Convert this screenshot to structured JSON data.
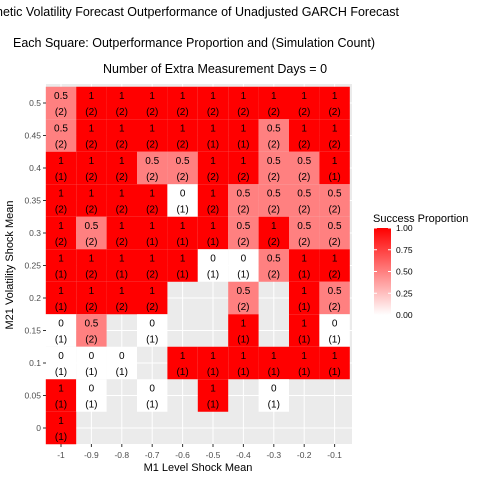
{
  "chart_data": {
    "type": "heatmap",
    "title": "hetic Volatility Forecast Outperformance of Unadjusted GARCH Forecast",
    "subtitle": "Each Square: Outperformance Proportion and (Simulation Count)",
    "subtitle2": "Number of Extra Measurement Days = 0",
    "xlabel": "M1 Level Shock Mean",
    "ylabel": "M21 Volatility Shock Mean",
    "x_ticks": [
      "-1",
      "-0.9",
      "-0.8",
      "-0.7",
      "-0.6",
      "-0.5",
      "-0.4",
      "-0.3",
      "-0.2",
      "-0.1"
    ],
    "y_ticks": [
      "0",
      "0.05",
      "0.1",
      "0.15",
      "0.2",
      "0.25",
      "0.3",
      "0.35",
      "0.4",
      "0.45",
      "0.5"
    ],
    "x_values": [
      -1,
      -0.9,
      -0.8,
      -0.7,
      -0.6,
      -0.5,
      -0.4,
      -0.3,
      -0.2,
      -0.1
    ],
    "y_values": [
      0,
      0.05,
      0.1,
      0.15,
      0.2,
      0.25,
      0.3,
      0.35,
      0.4,
      0.45,
      0.5
    ],
    "grid": true,
    "legend": {
      "title": "Success Proportion",
      "labels": [
        "1.00",
        "0.75",
        "0.50",
        "0.25",
        "0.00"
      ],
      "low_color": "#ffffff",
      "high_color": "#ff0000",
      "placement": "right"
    },
    "panel_background": "#ebebeb",
    "cells": [
      {
        "x": -1,
        "y": 0.5,
        "value": 0.5,
        "count": 2
      },
      {
        "x": -0.9,
        "y": 0.5,
        "value": 1,
        "count": 2
      },
      {
        "x": -0.8,
        "y": 0.5,
        "value": 1,
        "count": 2
      },
      {
        "x": -0.7,
        "y": 0.5,
        "value": 1,
        "count": 2
      },
      {
        "x": -0.6,
        "y": 0.5,
        "value": 1,
        "count": 2
      },
      {
        "x": -0.5,
        "y": 0.5,
        "value": 1,
        "count": 2
      },
      {
        "x": -0.4,
        "y": 0.5,
        "value": 1,
        "count": 2
      },
      {
        "x": -0.3,
        "y": 0.5,
        "value": 1,
        "count": 2
      },
      {
        "x": -0.2,
        "y": 0.5,
        "value": 1,
        "count": 2
      },
      {
        "x": -0.1,
        "y": 0.5,
        "value": 1,
        "count": 2
      },
      {
        "x": -1,
        "y": 0.45,
        "value": 0.5,
        "count": 2
      },
      {
        "x": -0.9,
        "y": 0.45,
        "value": 1,
        "count": 2
      },
      {
        "x": -0.8,
        "y": 0.45,
        "value": 1,
        "count": 2
      },
      {
        "x": -0.7,
        "y": 0.45,
        "value": 1,
        "count": 2
      },
      {
        "x": -0.6,
        "y": 0.45,
        "value": 1,
        "count": 2
      },
      {
        "x": -0.5,
        "y": 0.45,
        "value": 1,
        "count": 1
      },
      {
        "x": -0.4,
        "y": 0.45,
        "value": 1,
        "count": 1
      },
      {
        "x": -0.3,
        "y": 0.45,
        "value": 0.5,
        "count": 2
      },
      {
        "x": -0.2,
        "y": 0.45,
        "value": 1,
        "count": 2
      },
      {
        "x": -0.1,
        "y": 0.45,
        "value": 1,
        "count": 2
      },
      {
        "x": -1,
        "y": 0.4,
        "value": 1,
        "count": 1
      },
      {
        "x": -0.9,
        "y": 0.4,
        "value": 1,
        "count": 2
      },
      {
        "x": -0.8,
        "y": 0.4,
        "value": 1,
        "count": 2
      },
      {
        "x": -0.7,
        "y": 0.4,
        "value": 0.5,
        "count": 2
      },
      {
        "x": -0.6,
        "y": 0.4,
        "value": 0.5,
        "count": 2
      },
      {
        "x": -0.5,
        "y": 0.4,
        "value": 1,
        "count": 2
      },
      {
        "x": -0.4,
        "y": 0.4,
        "value": 1,
        "count": 2
      },
      {
        "x": -0.3,
        "y": 0.4,
        "value": 0.5,
        "count": 2
      },
      {
        "x": -0.2,
        "y": 0.4,
        "value": 0.5,
        "count": 2
      },
      {
        "x": -0.1,
        "y": 0.4,
        "value": 1,
        "count": 1
      },
      {
        "x": -1,
        "y": 0.35,
        "value": 1,
        "count": 2
      },
      {
        "x": -0.9,
        "y": 0.35,
        "value": 1,
        "count": 2
      },
      {
        "x": -0.8,
        "y": 0.35,
        "value": 1,
        "count": 2
      },
      {
        "x": -0.7,
        "y": 0.35,
        "value": 1,
        "count": 2
      },
      {
        "x": -0.6,
        "y": 0.35,
        "value": 0,
        "count": 1
      },
      {
        "x": -0.5,
        "y": 0.35,
        "value": 1,
        "count": 2
      },
      {
        "x": -0.4,
        "y": 0.35,
        "value": 0.5,
        "count": 2
      },
      {
        "x": -0.3,
        "y": 0.35,
        "value": 0.5,
        "count": 2
      },
      {
        "x": -0.2,
        "y": 0.35,
        "value": 0.5,
        "count": 2
      },
      {
        "x": -0.1,
        "y": 0.35,
        "value": 0.5,
        "count": 2
      },
      {
        "x": -1,
        "y": 0.3,
        "value": 1,
        "count": 2
      },
      {
        "x": -0.9,
        "y": 0.3,
        "value": 0.5,
        "count": 2
      },
      {
        "x": -0.8,
        "y": 0.3,
        "value": 1,
        "count": 2
      },
      {
        "x": -0.7,
        "y": 0.3,
        "value": 1,
        "count": 1
      },
      {
        "x": -0.6,
        "y": 0.3,
        "value": 1,
        "count": 1
      },
      {
        "x": -0.5,
        "y": 0.3,
        "value": 1,
        "count": 1
      },
      {
        "x": -0.4,
        "y": 0.3,
        "value": 0.5,
        "count": 2
      },
      {
        "x": -0.3,
        "y": 0.3,
        "value": 1,
        "count": 2
      },
      {
        "x": -0.2,
        "y": 0.3,
        "value": 0.5,
        "count": 2
      },
      {
        "x": -0.1,
        "y": 0.3,
        "value": 0.5,
        "count": 2
      },
      {
        "x": -1,
        "y": 0.25,
        "value": 1,
        "count": 1
      },
      {
        "x": -0.9,
        "y": 0.25,
        "value": 1,
        "count": 2
      },
      {
        "x": -0.8,
        "y": 0.25,
        "value": 1,
        "count": 1
      },
      {
        "x": -0.7,
        "y": 0.25,
        "value": 1,
        "count": 2
      },
      {
        "x": -0.6,
        "y": 0.25,
        "value": 1,
        "count": 1
      },
      {
        "x": -0.5,
        "y": 0.25,
        "value": 0,
        "count": 1
      },
      {
        "x": -0.4,
        "y": 0.25,
        "value": 0,
        "count": 1
      },
      {
        "x": -0.3,
        "y": 0.25,
        "value": 0.5,
        "count": 2
      },
      {
        "x": -0.2,
        "y": 0.25,
        "value": 1,
        "count": 1
      },
      {
        "x": -0.1,
        "y": 0.25,
        "value": 1,
        "count": 2
      },
      {
        "x": -1,
        "y": 0.2,
        "value": 1,
        "count": 1
      },
      {
        "x": -0.9,
        "y": 0.2,
        "value": 1,
        "count": 2
      },
      {
        "x": -0.8,
        "y": 0.2,
        "value": 1,
        "count": 2
      },
      {
        "x": -0.7,
        "y": 0.2,
        "value": 1,
        "count": 2
      },
      {
        "x": -0.4,
        "y": 0.2,
        "value": 0.5,
        "count": 2
      },
      {
        "x": -0.2,
        "y": 0.2,
        "value": 1,
        "count": 1
      },
      {
        "x": -0.1,
        "y": 0.2,
        "value": 0.5,
        "count": 2
      },
      {
        "x": -1,
        "y": 0.15,
        "value": 0,
        "count": 1
      },
      {
        "x": -0.9,
        "y": 0.15,
        "value": 0.5,
        "count": 2
      },
      {
        "x": -0.7,
        "y": 0.15,
        "value": 0,
        "count": 1
      },
      {
        "x": -0.4,
        "y": 0.15,
        "value": 1,
        "count": 1
      },
      {
        "x": -0.2,
        "y": 0.15,
        "value": 1,
        "count": 1
      },
      {
        "x": -0.1,
        "y": 0.15,
        "value": 0,
        "count": 1
      },
      {
        "x": -1,
        "y": 0.1,
        "value": 0,
        "count": 1
      },
      {
        "x": -0.9,
        "y": 0.1,
        "value": 0,
        "count": 1
      },
      {
        "x": -0.8,
        "y": 0.1,
        "value": 0,
        "count": 1
      },
      {
        "x": -0.6,
        "y": 0.1,
        "value": 1,
        "count": 1
      },
      {
        "x": -0.5,
        "y": 0.1,
        "value": 1,
        "count": 1
      },
      {
        "x": -0.4,
        "y": 0.1,
        "value": 1,
        "count": 1
      },
      {
        "x": -0.3,
        "y": 0.1,
        "value": 1,
        "count": 1
      },
      {
        "x": -0.2,
        "y": 0.1,
        "value": 1,
        "count": 1
      },
      {
        "x": -0.1,
        "y": 0.1,
        "value": 1,
        "count": 1
      },
      {
        "x": -1,
        "y": 0.05,
        "value": 1,
        "count": 1
      },
      {
        "x": -0.9,
        "y": 0.05,
        "value": 0,
        "count": 1
      },
      {
        "x": -0.7,
        "y": 0.05,
        "value": 0,
        "count": 1
      },
      {
        "x": -0.5,
        "y": 0.05,
        "value": 1,
        "count": 1
      },
      {
        "x": -0.3,
        "y": 0.05,
        "value": 0,
        "count": 1
      },
      {
        "x": -1,
        "y": 0,
        "value": 1,
        "count": 1
      }
    ]
  }
}
